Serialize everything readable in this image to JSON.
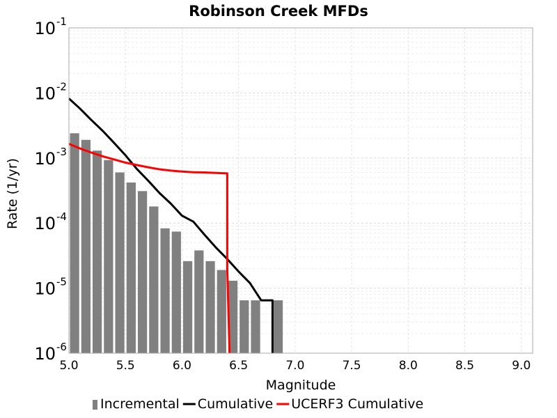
{
  "chart_data": {
    "type": "bar+line",
    "title": "Robinson Creek MFDs",
    "xlabel": "Magnitude",
    "ylabel": "Rate (1/yr)",
    "xlim": [
      5.0,
      9.1
    ],
    "ylim": [
      1e-06,
      0.1
    ],
    "yscale": "log",
    "grid": true,
    "legend_position": "bottom",
    "x_ticks": [
      "5.0",
      "5.5",
      "6.0",
      "6.5",
      "7.0",
      "7.5",
      "8.0",
      "8.5",
      "9.0"
    ],
    "y_ticks": [
      {
        "base": "10",
        "exp": "-6"
      },
      {
        "base": "10",
        "exp": "-5"
      },
      {
        "base": "10",
        "exp": "-4"
      },
      {
        "base": "10",
        "exp": "-3"
      },
      {
        "base": "10",
        "exp": "-2"
      },
      {
        "base": "10",
        "exp": "-1"
      }
    ],
    "incremental": {
      "name": "Incremental",
      "color": "#808080",
      "bin_width": 0.1,
      "x": [
        5.05,
        5.15,
        5.25,
        5.35,
        5.45,
        5.55,
        5.65,
        5.75,
        5.85,
        5.95,
        6.05,
        6.15,
        6.25,
        6.35,
        6.45,
        6.55,
        6.65,
        6.75,
        6.85
      ],
      "values": [
        0.0024,
        0.0019,
        0.0013,
        0.00093,
        0.0006,
        0.00042,
        0.00031,
        0.00018,
        8.3e-05,
        7.4e-05,
        2.6e-05,
        3.8e-05,
        2.6e-05,
        1.9e-05,
        1.3e-05,
        6.5e-06,
        6.5e-06,
        0,
        6.5e-06
      ]
    },
    "series": [
      {
        "name": "Cumulative",
        "color": "#000000",
        "x": [
          5.0,
          5.1,
          5.2,
          5.3,
          5.4,
          5.5,
          5.6,
          5.7,
          5.8,
          5.9,
          6.0,
          6.1,
          6.2,
          6.3,
          6.4,
          6.5,
          6.6,
          6.7,
          6.8,
          6.8
        ],
        "values": [
          0.0082,
          0.0057,
          0.0038,
          0.0026,
          0.0017,
          0.0011,
          0.00068,
          0.00045,
          0.00029,
          0.0002,
          0.00013,
          0.000105,
          6.6e-05,
          4.2e-05,
          2.8e-05,
          1.8e-05,
          1.2e-05,
          6.5e-06,
          6.5e-06,
          1e-06
        ]
      },
      {
        "name": "UCERF3 Cumulative",
        "color": "#ff0000",
        "x": [
          5.0,
          5.1,
          5.2,
          5.3,
          5.4,
          5.5,
          5.6,
          5.7,
          5.8,
          5.9,
          6.0,
          6.1,
          6.2,
          6.3,
          6.4,
          6.4,
          6.42
        ],
        "values": [
          0.00165,
          0.0014,
          0.00121,
          0.00106,
          0.00095,
          0.00085,
          0.00078,
          0.00072,
          0.00067,
          0.00064,
          0.00062,
          0.000605,
          0.0006,
          0.00059,
          0.00058,
          2e-05,
          1e-06
        ]
      }
    ],
    "legend": [
      {
        "label": "Incremental",
        "kind": "bar",
        "color": "#808080"
      },
      {
        "label": "Cumulative",
        "kind": "line",
        "color": "#000000"
      },
      {
        "label": "UCERF3 Cumulative",
        "kind": "line",
        "color": "#ff0000"
      }
    ]
  }
}
